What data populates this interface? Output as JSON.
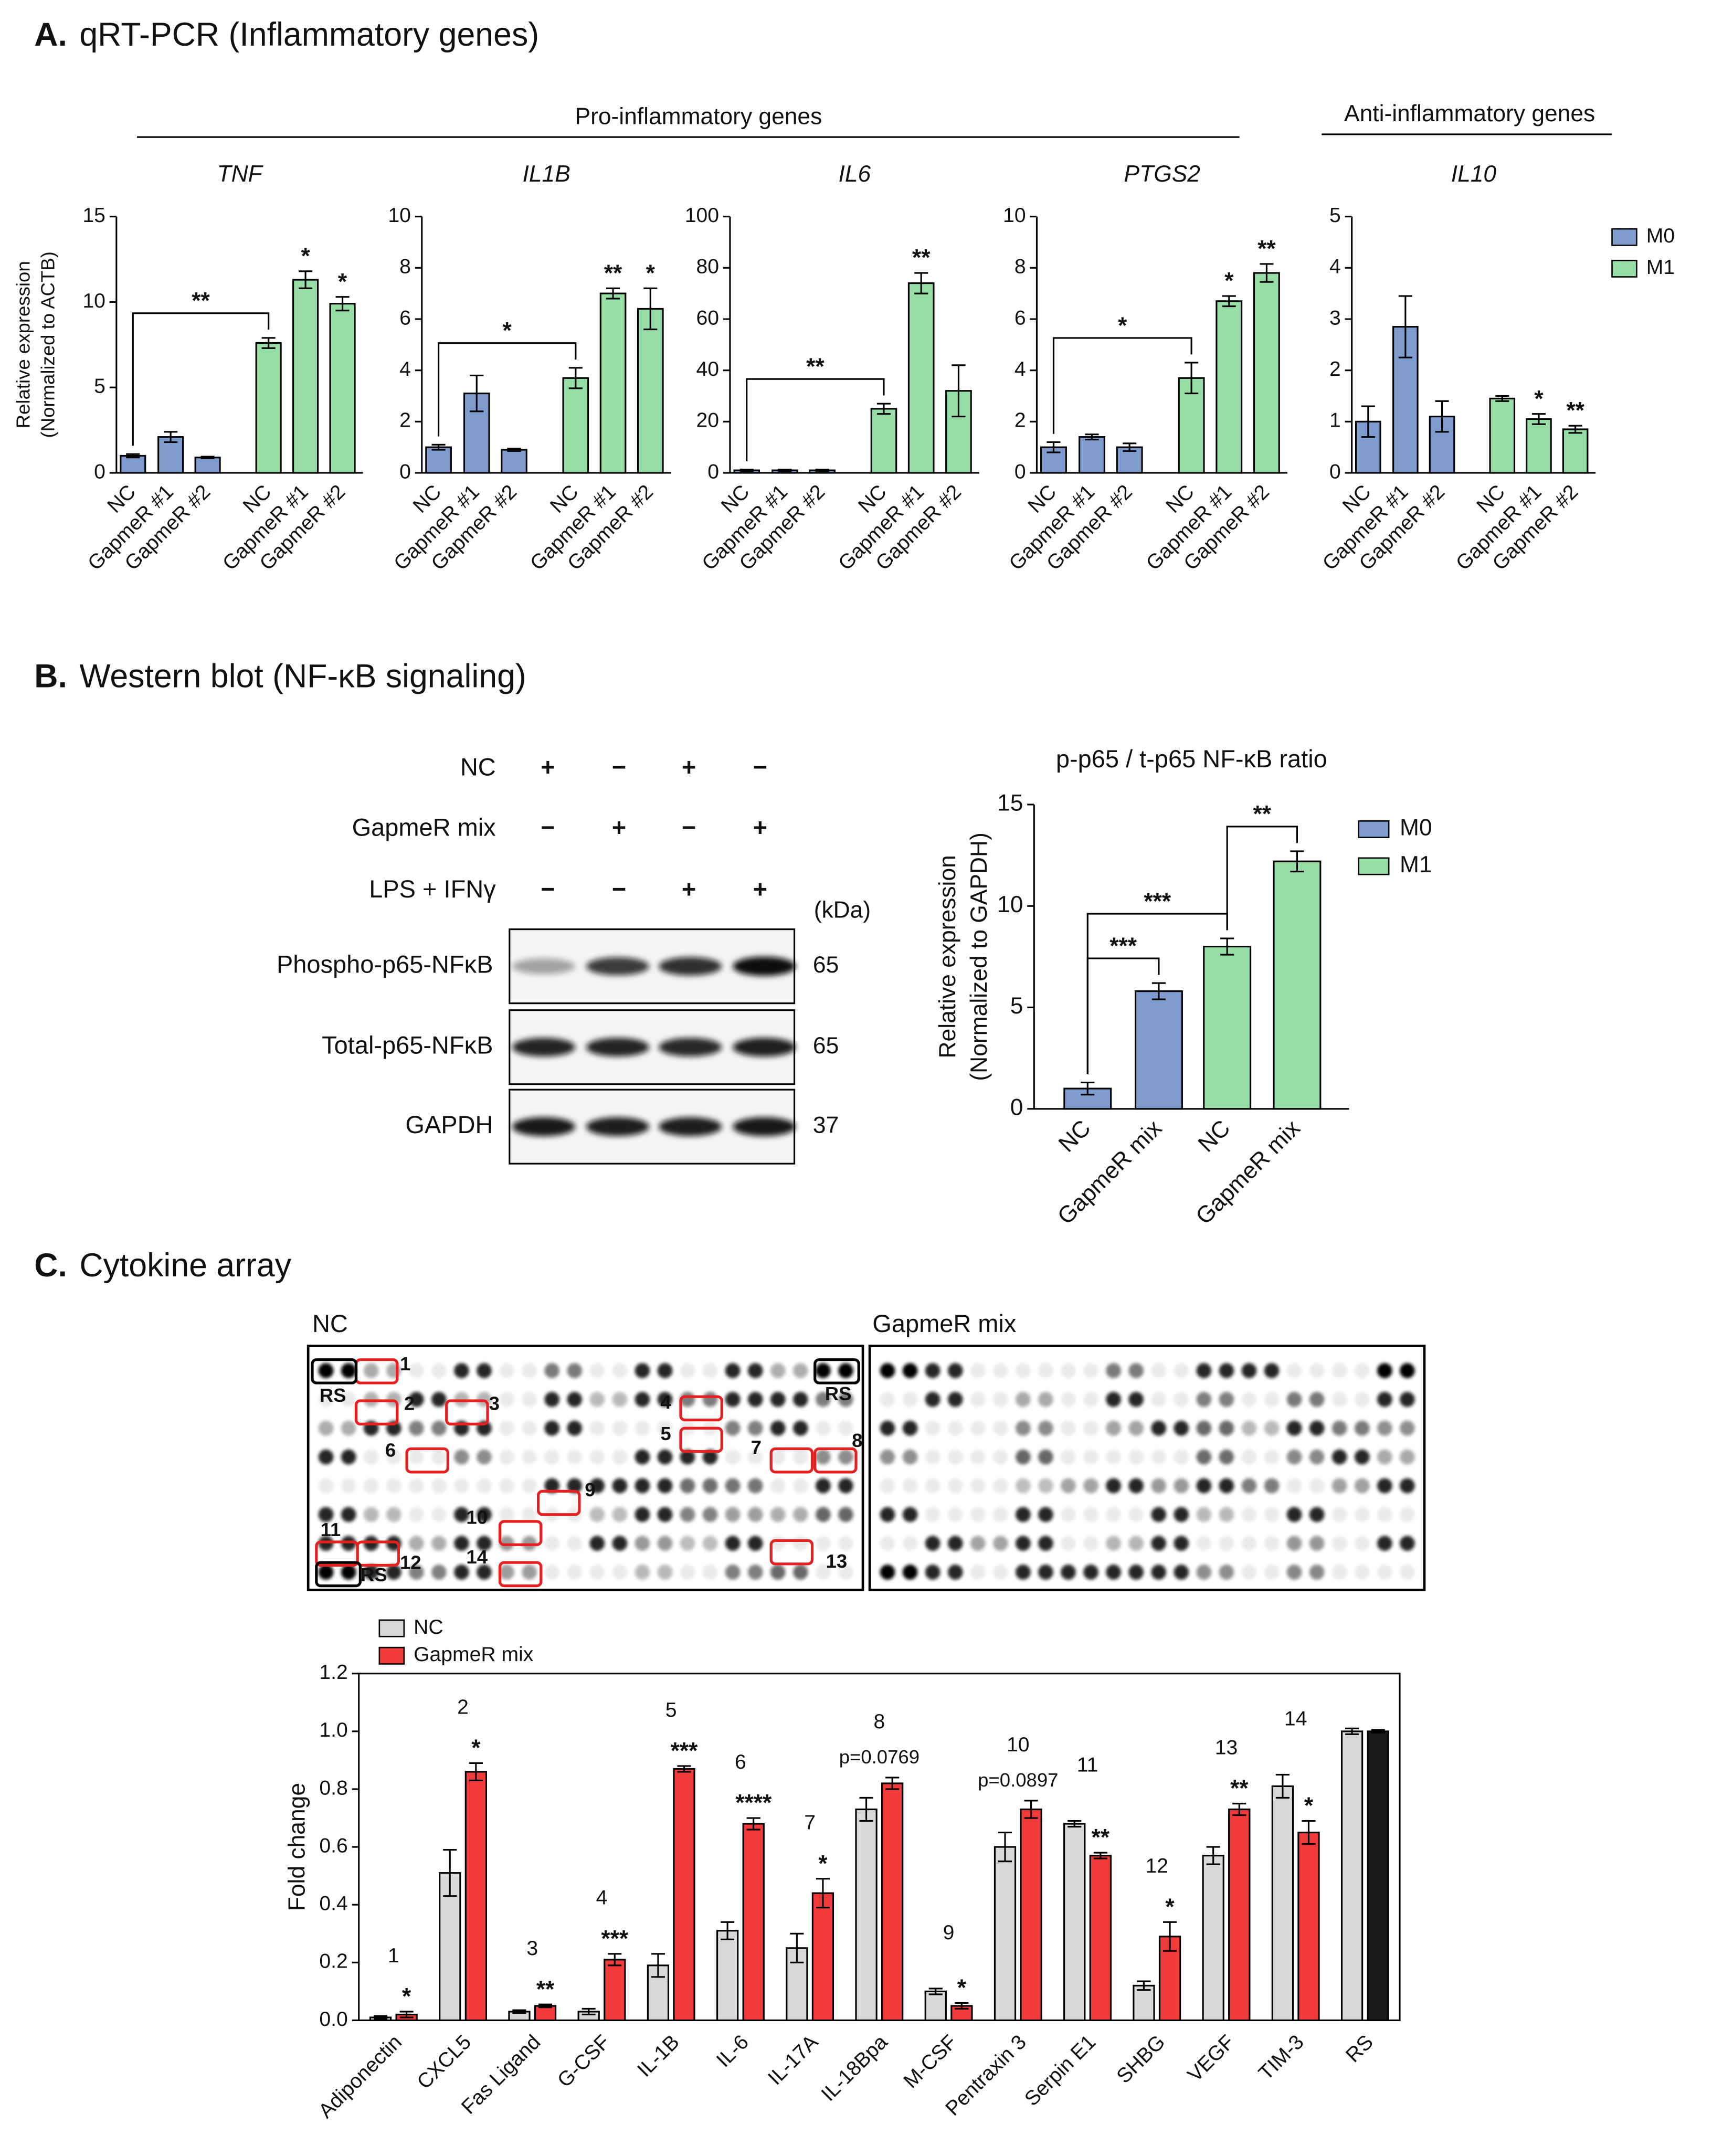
{
  "headings": [
    {
      "letter": "A.",
      "title": "qRT-PCR (Inflammatory genes)"
    },
    {
      "letter": "B.",
      "title": "Western blot (NF-κB signaling)"
    },
    {
      "letter": "C.",
      "title": "Cytokine array"
    }
  ],
  "gene_groups": [
    "Pro-inflammatory genes",
    "Anti-inflammatory genes"
  ],
  "blot": {
    "conditions": [
      {
        "name": "NC",
        "signs": [
          "+",
          "−",
          "+",
          "−"
        ]
      },
      {
        "name": "GapmeR mix",
        "signs": [
          "−",
          "+",
          "−",
          "+"
        ]
      },
      {
        "name": "LPS + IFNγ",
        "signs": [
          "−",
          "−",
          "+",
          "+"
        ]
      }
    ],
    "unit": "(kDa)",
    "bands": [
      {
        "name": "Phospho-p65-NFκB",
        "kda": 65
      },
      {
        "name": "Total-p65-NFκB",
        "kda": 65
      },
      {
        "name": "GAPDH",
        "kda": 37
      }
    ]
  },
  "array": {
    "panels": [
      "NC",
      "GapmeR mix"
    ],
    "spots": [
      1,
      2,
      3,
      4,
      5,
      6,
      7,
      8,
      9,
      10,
      11,
      12,
      13,
      14
    ],
    "reference": "RS"
  },
  "chart_data": [
    {
      "type": "bar",
      "title": "TNF",
      "ylabel": [
        "Relative expression",
        "(Normalized to ACTB)"
      ],
      "categories": [
        "NC",
        "GapmeR #1",
        "GapmeR #2"
      ],
      "series": [
        {
          "name": "M0",
          "color": "#7f9ccf",
          "values": [
            1.0,
            2.1,
            0.9
          ],
          "errors": [
            0.1,
            0.3,
            0.05
          ],
          "significance": [
            null,
            null,
            null
          ]
        },
        {
          "name": "M1",
          "color": "#96dda6",
          "values": [
            7.6,
            11.3,
            9.9
          ],
          "errors": [
            0.3,
            0.5,
            0.4
          ],
          "significance": [
            null,
            "*",
            "*"
          ]
        }
      ],
      "brackets": [
        {
          "from": [
            0,
            0
          ],
          "to": [
            1,
            0
          ],
          "label": "**"
        }
      ],
      "ylim": [
        0,
        15
      ],
      "yticks": [
        0,
        5,
        10,
        15
      ]
    },
    {
      "type": "bar",
      "title": "IL1B",
      "categories": [
        "NC",
        "GapmeR #1",
        "GapmeR #2"
      ],
      "series": [
        {
          "name": "M0",
          "color": "#7f9ccf",
          "values": [
            1.0,
            3.1,
            0.9
          ],
          "errors": [
            0.1,
            0.7,
            0.05
          ],
          "significance": [
            null,
            null,
            null
          ]
        },
        {
          "name": "M1",
          "color": "#96dda6",
          "values": [
            3.7,
            7.0,
            6.4
          ],
          "errors": [
            0.4,
            0.2,
            0.8
          ],
          "significance": [
            null,
            "**",
            "*"
          ]
        }
      ],
      "brackets": [
        {
          "from": [
            0,
            0
          ],
          "to": [
            1,
            0
          ],
          "label": "*"
        }
      ],
      "ylim": [
        0,
        10
      ],
      "yticks": [
        0,
        2,
        4,
        6,
        8,
        10
      ]
    },
    {
      "type": "bar",
      "title": "IL6",
      "categories": [
        "NC",
        "GapmeR #1",
        "GapmeR #2"
      ],
      "series": [
        {
          "name": "M0",
          "color": "#7f9ccf",
          "values": [
            1,
            1,
            1
          ],
          "errors": [
            0.3,
            0.3,
            0.3
          ],
          "significance": [
            null,
            null,
            null
          ]
        },
        {
          "name": "M1",
          "color": "#96dda6",
          "values": [
            25,
            74,
            32
          ],
          "errors": [
            2,
            4,
            10
          ],
          "significance": [
            null,
            "**",
            null
          ]
        }
      ],
      "brackets": [
        {
          "from": [
            0,
            0
          ],
          "to": [
            1,
            0
          ],
          "label": "**"
        }
      ],
      "ylim": [
        0,
        100
      ],
      "yticks": [
        0,
        20,
        40,
        60,
        80,
        100
      ]
    },
    {
      "type": "bar",
      "title": "PTGS2",
      "categories": [
        "NC",
        "GapmeR #1",
        "GapmeR #2"
      ],
      "series": [
        {
          "name": "M0",
          "color": "#7f9ccf",
          "values": [
            1.0,
            1.4,
            1.0
          ],
          "errors": [
            0.2,
            0.1,
            0.15
          ],
          "significance": [
            null,
            null,
            null
          ]
        },
        {
          "name": "M1",
          "color": "#96dda6",
          "values": [
            3.7,
            6.7,
            7.8
          ],
          "errors": [
            0.6,
            0.2,
            0.35
          ],
          "significance": [
            null,
            "*",
            "**"
          ]
        }
      ],
      "brackets": [
        {
          "from": [
            0,
            0
          ],
          "to": [
            1,
            0
          ],
          "label": "*"
        }
      ],
      "ylim": [
        0,
        10
      ],
      "yticks": [
        0,
        2,
        4,
        6,
        8,
        10
      ]
    },
    {
      "type": "bar",
      "title": "IL10",
      "legend": "right",
      "categories": [
        "NC",
        "GapmeR #1",
        "GapmeR #2"
      ],
      "series": [
        {
          "name": "M0",
          "color": "#7f9ccf",
          "values": [
            1.0,
            2.85,
            1.1
          ],
          "errors": [
            0.3,
            0.6,
            0.3
          ],
          "significance": [
            null,
            null,
            null
          ]
        },
        {
          "name": "M1",
          "color": "#96dda6",
          "values": [
            1.45,
            1.05,
            0.85
          ],
          "errors": [
            0.05,
            0.1,
            0.07
          ],
          "significance": [
            null,
            "*",
            "**"
          ]
        }
      ],
      "ylim": [
        0,
        5
      ],
      "yticks": [
        0,
        1,
        2,
        3,
        4,
        5
      ]
    },
    {
      "type": "bar",
      "title": "p-p65 / t-p65 NF-κB ratio",
      "legend": "right",
      "ylabel": [
        "Relative expression",
        "(Normalized to GAPDH)"
      ],
      "categories": [
        "NC",
        "GapmeR mix"
      ],
      "series": [
        {
          "name": "M0",
          "color": "#7f9ccf",
          "values": [
            1.0,
            5.8
          ],
          "errors": [
            0.3,
            0.4
          ],
          "significance": [
            null,
            null
          ]
        },
        {
          "name": "M1",
          "color": "#96dda6",
          "values": [
            8.0,
            12.2
          ],
          "errors": [
            0.4,
            0.5
          ],
          "significance": [
            null,
            null
          ]
        }
      ],
      "brackets": [
        {
          "from": [
            0,
            0
          ],
          "to": [
            0,
            1
          ],
          "label": "***"
        },
        {
          "from": [
            0,
            0
          ],
          "to": [
            1,
            0
          ],
          "label": "***"
        },
        {
          "from": [
            1,
            0
          ],
          "to": [
            1,
            1
          ],
          "label": "**"
        }
      ],
      "ylim": [
        0,
        15
      ],
      "yticks": [
        0,
        5,
        10,
        15
      ]
    },
    {
      "type": "bar",
      "legend": "top-left",
      "ylabel": [
        "Fold change"
      ],
      "categories": [
        "Adiponectin",
        "CXCL5",
        "Fas Ligand",
        "G-CSF",
        "IL-1B",
        "IL-6",
        "IL-17A",
        "IL-18Bpa",
        "M-CSF",
        "Pentraxin 3",
        "Serpin E1",
        "SHBG",
        "VEGF",
        "TIM-3",
        "RS"
      ],
      "series": [
        {
          "name": "NC",
          "color": "#d9d9d9",
          "values": [
            0.01,
            0.51,
            0.03,
            0.03,
            0.19,
            0.31,
            0.25,
            0.73,
            0.1,
            0.6,
            0.68,
            0.12,
            0.57,
            0.81,
            1.0
          ],
          "errors": [
            0.005,
            0.08,
            0.005,
            0.01,
            0.04,
            0.03,
            0.05,
            0.04,
            0.01,
            0.05,
            0.01,
            0.015,
            0.03,
            0.04,
            0.01
          ]
        },
        {
          "name": "GapmeR mix",
          "color": "#f23b3b",
          "colors": [
            "#f23b3b",
            "#f23b3b",
            "#f23b3b",
            "#f23b3b",
            "#f23b3b",
            "#f23b3b",
            "#f23b3b",
            "#f23b3b",
            "#f23b3b",
            "#f23b3b",
            "#f23b3b",
            "#f23b3b",
            "#f23b3b",
            "#f23b3b",
            "#1a1a1a"
          ],
          "values": [
            0.02,
            0.86,
            0.05,
            0.21,
            0.87,
            0.68,
            0.44,
            0.82,
            0.05,
            0.73,
            0.57,
            0.29,
            0.73,
            0.65,
            1.0
          ],
          "errors": [
            0.01,
            0.03,
            0.005,
            0.02,
            0.01,
            0.02,
            0.05,
            0.02,
            0.01,
            0.03,
            0.01,
            0.05,
            0.02,
            0.04,
            0.005
          ],
          "significance": [
            "*",
            "*",
            "**",
            "***",
            "***",
            "****",
            "*",
            null,
            "*",
            null,
            "**",
            "*",
            "**",
            "*",
            null
          ]
        }
      ],
      "array_ids": [
        1,
        2,
        3,
        4,
        5,
        6,
        7,
        8,
        9,
        10,
        11,
        12,
        13,
        14,
        null
      ],
      "p_values": [
        null,
        null,
        null,
        null,
        null,
        null,
        null,
        "p=0.0769",
        null,
        "p=0.0897",
        null,
        null,
        null,
        null,
        null
      ],
      "ylim": [
        0,
        1.2
      ],
      "yticks": [
        {
          "value": 0,
          "label": "0.0"
        },
        0.2,
        0.4,
        0.6,
        0.8,
        {
          "value": 1,
          "label": "1.0"
        },
        1.2
      ]
    }
  ]
}
